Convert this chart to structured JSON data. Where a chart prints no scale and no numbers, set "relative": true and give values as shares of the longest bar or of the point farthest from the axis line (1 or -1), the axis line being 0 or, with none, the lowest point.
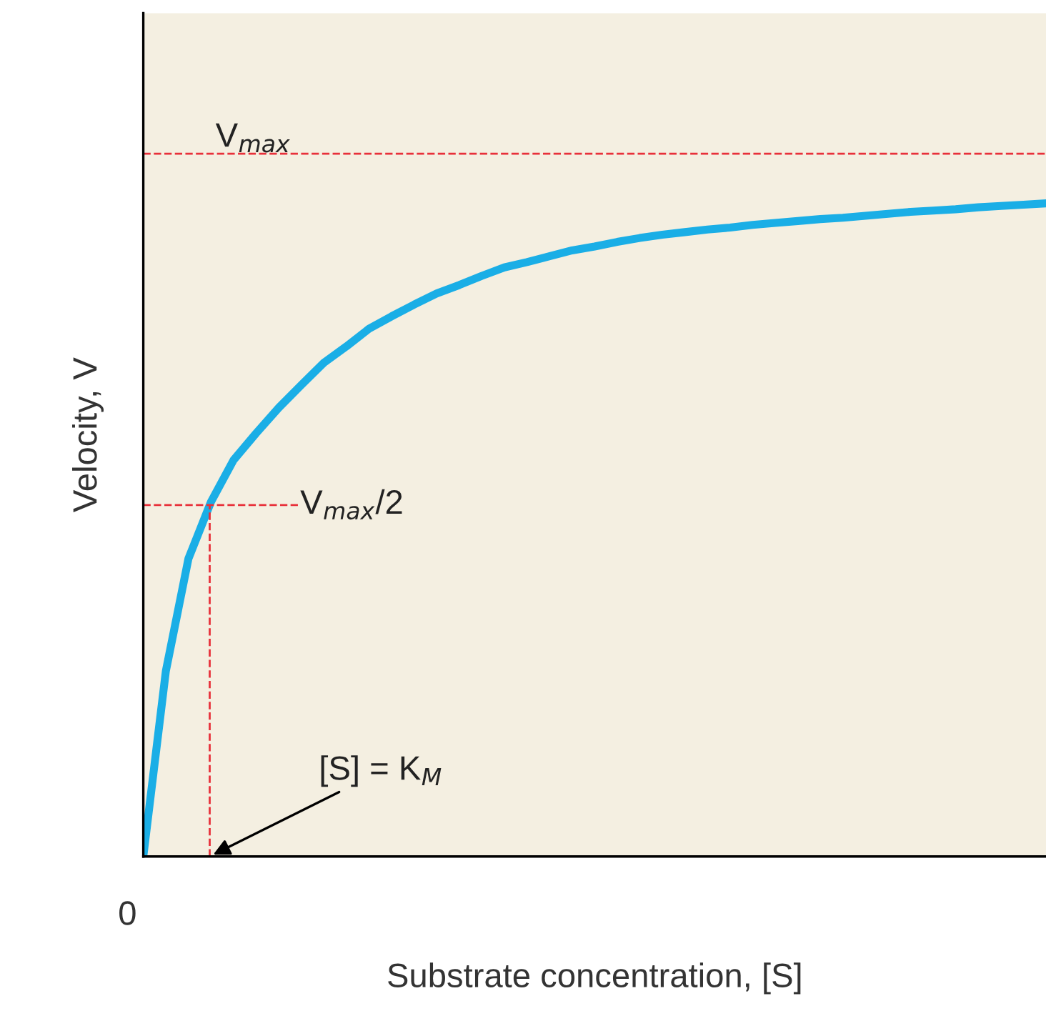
{
  "chart_data": {
    "type": "line",
    "relative": true,
    "xlabel": "Substrate concentration, [S]",
    "ylabel": "Velocity, V",
    "categories": [
      null,
      null,
      null,
      null,
      null,
      null,
      null,
      null,
      null,
      null,
      null,
      null,
      null,
      null,
      null,
      null,
      null,
      null,
      null,
      null,
      null,
      null,
      null,
      null,
      null,
      null,
      null,
      null,
      null,
      null,
      null,
      null,
      null,
      null,
      null,
      null,
      null,
      null,
      null,
      null,
      null
    ],
    "series": [
      {
        "color": "#1aaee6",
        "values": [
          0,
          0.284,
          0.456,
          0.543,
          0.607,
          0.648,
          0.687,
          0.722,
          0.756,
          0.781,
          0.808,
          0.827,
          0.845,
          0.862,
          0.875,
          0.889,
          0.902,
          0.91,
          0.919,
          0.928,
          0.934,
          0.941,
          0.947,
          0.952,
          0.956,
          0.96,
          0.963,
          0.967,
          0.97,
          0.973,
          0.976,
          0.978,
          0.981,
          0.984,
          0.987,
          0.989,
          0.991,
          0.994,
          0.996,
          0.998,
          1
        ]
      }
    ],
    "ref_lines": [
      {
        "axis": "y",
        "value": 1.076,
        "label": "V$_{max}$",
        "color": "#e8303a",
        "line_style": "dashed"
      },
      {
        "axis": "y",
        "value": 0.538,
        "label": "V$_{max}$/2",
        "color": "#e8303a",
        "line_style": "dashed"
      }
    ],
    "annotations": [
      "[S] = K$_{M}$",
      "0"
    ],
    "marker": "none",
    "line_style": "solid"
  }
}
